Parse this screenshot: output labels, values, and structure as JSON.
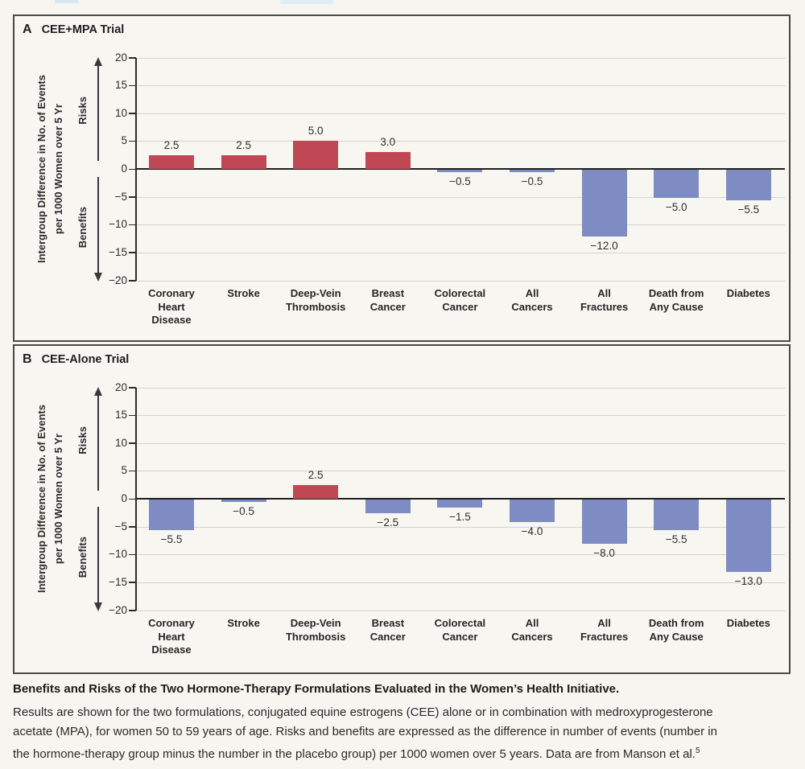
{
  "page": {
    "caption": {
      "title": "Benefits and Risks of the Two Hormone-Therapy Formulations Evaluated in the Women’s Health Initiative.",
      "body_lines": [
        "Results are shown for the two formulations, conjugated equine estrogens (CEE) alone or in combination with medroxyprogesterone",
        "acetate (MPA), for women 50 to 59 years of age. Risks and benefits are expressed as the difference in number of events (number in",
        "the hormone-therapy group minus the number in the placebo group) per 1000 women over 5 years. Data are from Manson et al."
      ],
      "reference_superscript": "5"
    }
  },
  "colors": {
    "paper": "#f6f5f0",
    "panel_border": "#4a4a47",
    "risk_bar_red": "#c04855",
    "benefit_bar_blue": "#7e8cc3",
    "gridline": "#d2d5cb",
    "zero_line": "#1f1f1f"
  },
  "chart_data": [
    {
      "type": "bar",
      "panel_letter": "A",
      "panel_title": "CEE+MPA Trial",
      "title": "CEE+MPA Trial",
      "xlabel": "",
      "ylabel": "Intergroup Difference in No. of Events per 1000 Women over 5 Yr",
      "ylabel_lines": [
        "Intergroup Difference in No. of Events",
        "per 1000 Women over 5 Yr"
      ],
      "axis_annotation_up": "Risks",
      "axis_annotation_down": "Benefits",
      "ylim": [
        -20,
        20
      ],
      "yticks": [
        20,
        15,
        10,
        5,
        0,
        -5,
        -10,
        -15,
        -20
      ],
      "grid": true,
      "legend": "none",
      "categories": [
        [
          "Coronary",
          "Heart",
          "Disease"
        ],
        [
          "Stroke"
        ],
        [
          "Deep-Vein",
          "Thrombosis"
        ],
        [
          "Breast",
          "Cancer"
        ],
        [
          "Colorectal",
          "Cancer"
        ],
        [
          "All",
          "Cancers"
        ],
        [
          "All",
          "Fractures"
        ],
        [
          "Death from",
          "Any Cause"
        ],
        [
          "Diabetes"
        ]
      ],
      "values": [
        2.5,
        2.5,
        5.0,
        3.0,
        -0.5,
        -0.5,
        -12.0,
        -5.0,
        -5.5
      ],
      "value_labels": [
        "2.5",
        "2.5",
        "5.0",
        "3.0",
        "−0.5",
        "−0.5",
        "−12.0",
        "−5.0",
        "−5.5"
      ],
      "positive_color": "#c04855",
      "negative_color": "#7e8cc3"
    },
    {
      "type": "bar",
      "panel_letter": "B",
      "panel_title": "CEE-Alone Trial",
      "title": "CEE-Alone Trial",
      "xlabel": "",
      "ylabel": "Intergroup Difference in No. of Events per 1000 Women over 5 Yr",
      "ylabel_lines": [
        "Intergroup Difference in No. of Events",
        "per 1000 Women over 5 Yr"
      ],
      "axis_annotation_up": "Risks",
      "axis_annotation_down": "Benefits",
      "ylim": [
        -20,
        20
      ],
      "yticks": [
        20,
        15,
        10,
        5,
        0,
        -5,
        -10,
        -15,
        -20
      ],
      "grid": true,
      "legend": "none",
      "categories": [
        [
          "Coronary",
          "Heart",
          "Disease"
        ],
        [
          "Stroke"
        ],
        [
          "Deep-Vein",
          "Thrombosis"
        ],
        [
          "Breast",
          "Cancer"
        ],
        [
          "Colorectal",
          "Cancer"
        ],
        [
          "All",
          "Cancers"
        ],
        [
          "All",
          "Fractures"
        ],
        [
          "Death from",
          "Any Cause"
        ],
        [
          "Diabetes"
        ]
      ],
      "values": [
        -5.5,
        -0.5,
        2.5,
        -2.5,
        -1.5,
        -4.0,
        -8.0,
        -5.5,
        -13.0
      ],
      "value_labels": [
        "−5.5",
        "−0.5",
        "2.5",
        "−2.5",
        "−1.5",
        "−4.0",
        "−8.0",
        "−5.5",
        "−13.0"
      ],
      "positive_color": "#c04855",
      "negative_color": "#7e8cc3"
    }
  ]
}
